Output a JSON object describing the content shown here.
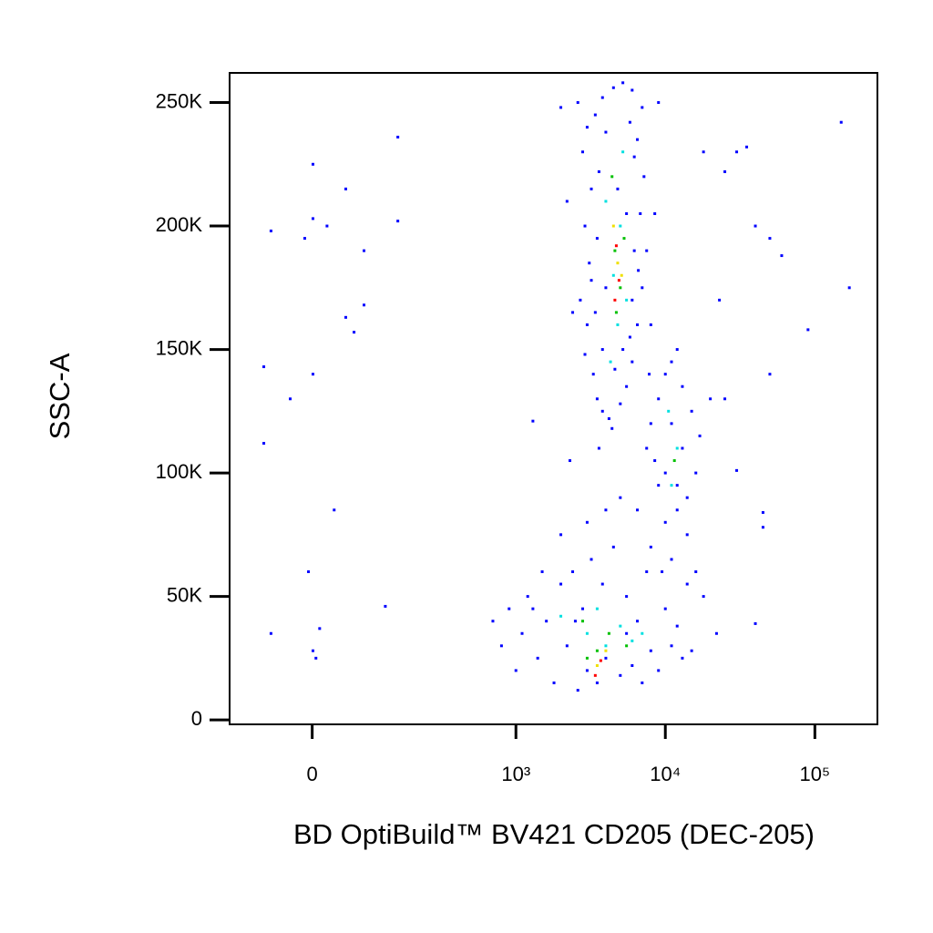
{
  "chart_data": {
    "type": "scatter",
    "x_label": "BD OptiBuild™ BV421 CD205 (DEC-205)",
    "y_label": "SSC-A",
    "xscale": "biexponential",
    "xlim": [
      -143,
      262000
    ],
    "ylim": [
      -1800,
      262000
    ],
    "xticks": [
      0,
      {
        "value": 1000,
        "label": "10³"
      },
      {
        "value": 10000,
        "label": "10⁴"
      },
      {
        "value": 100000,
        "label": "10⁵"
      }
    ],
    "yticks": [
      0,
      {
        "value": 50000,
        "label": "50K"
      },
      {
        "value": 100000,
        "label": "100K"
      },
      {
        "value": 150000,
        "label": "150K"
      },
      {
        "value": 200000,
        "label": "200K"
      },
      {
        "value": 250000,
        "label": "250K"
      }
    ],
    "series": [
      {
        "color": "#0000ff",
        "x": [
          2600,
          3000,
          2800,
          3200,
          2900,
          3100,
          2700,
          3000,
          2900,
          3300,
          3500,
          3800,
          4200,
          5000,
          5500,
          6000,
          6500,
          7000,
          7500,
          6800,
          7200,
          6500,
          7000,
          6000,
          5200,
          4500,
          3800,
          3400,
          4000,
          5800,
          6200,
          3600,
          4800,
          5500,
          3500,
          6200,
          4000,
          6000,
          3400,
          5800,
          3800,
          4600,
          5200,
          3200,
          6600,
          2400,
          2200,
          8000,
          8500,
          9000,
          2000,
          7800,
          4400,
          2300,
          3600,
          8000,
          9000,
          10000,
          11000,
          12000,
          13000,
          15000,
          17000,
          16000,
          14000,
          12000,
          10000,
          9000,
          8500,
          7500,
          11000,
          13000,
          10000,
          12000,
          14000,
          11000,
          16000,
          18000,
          8000,
          9500,
          6500,
          20000,
          700,
          800,
          900,
          1000,
          1100,
          1200,
          1400,
          1600,
          1800,
          2000,
          2200,
          2400,
          2600,
          2800,
          3000,
          3200,
          3500,
          3800,
          4000,
          4500,
          5000,
          5500,
          6000,
          6500,
          7000,
          7500,
          8000,
          9000,
          10000,
          11000,
          12000,
          13000,
          15000,
          14000,
          2000,
          3000,
          4000,
          5000,
          1500,
          2500,
          5500,
          1300,
          -71,
          -71,
          -59,
          -59,
          -30,
          -10,
          1,
          1,
          1,
          1,
          5,
          -5,
          10,
          20,
          30,
          47,
          47,
          77,
          77,
          60,
          151,
          151,
          120,
          1300,
          25000,
          30000,
          35000,
          40000,
          50000,
          60000,
          90000,
          150000,
          170000,
          45000,
          45000,
          40000,
          22000,
          30000,
          25000,
          50000,
          18000,
          23000
        ],
        "values": [
          250000,
          240000,
          230000,
          215000,
          200000,
          185000,
          170000,
          160000,
          148000,
          140000,
          130000,
          125000,
          122000,
          128000,
          135000,
          145000,
          160000,
          175000,
          190000,
          205000,
          220000,
          235000,
          248000,
          255000,
          258000,
          256000,
          252000,
          245000,
          238000,
          242000,
          228000,
          222000,
          215000,
          205000,
          195000,
          190000,
          175000,
          170000,
          165000,
          155000,
          150000,
          142000,
          150000,
          178000,
          182000,
          165000,
          210000,
          160000,
          205000,
          250000,
          248000,
          140000,
          118000,
          105000,
          110000,
          120000,
          130000,
          140000,
          145000,
          150000,
          135000,
          125000,
          115000,
          100000,
          90000,
          85000,
          80000,
          95000,
          105000,
          110000,
          120000,
          110000,
          100000,
          95000,
          75000,
          65000,
          60000,
          50000,
          70000,
          60000,
          85000,
          130000,
          40000,
          30000,
          45000,
          20000,
          35000,
          50000,
          25000,
          40000,
          15000,
          55000,
          30000,
          60000,
          12000,
          45000,
          20000,
          65000,
          15000,
          55000,
          25000,
          70000,
          18000,
          50000,
          22000,
          40000,
          15000,
          60000,
          28000,
          20000,
          45000,
          30000,
          38000,
          25000,
          28000,
          55000,
          75000,
          80000,
          85000,
          90000,
          60000,
          40000,
          35000,
          45000,
          112000,
          143000,
          35000,
          198000,
          130000,
          195000,
          225000,
          203000,
          140000,
          28000,
          25000,
          60000,
          37000,
          200000,
          85000,
          163000,
          215000,
          190000,
          168000,
          157000,
          236000,
          202000,
          46000,
          121000,
          222000,
          230000,
          232000,
          200000,
          195000,
          188000,
          158000,
          242000,
          175000,
          84000,
          78000,
          39000,
          35000,
          101000,
          130000,
          140000,
          230000,
          170000
        ]
      },
      {
        "color": "#00e0e0",
        "x": [
          4500,
          5000,
          4000,
          5500,
          4800,
          5200,
          4300,
          12000,
          11000,
          10500,
          3000,
          4000,
          5000,
          6000,
          3500,
          2000,
          7000
        ],
        "values": [
          180000,
          200000,
          210000,
          170000,
          160000,
          230000,
          145000,
          110000,
          95000,
          125000,
          35000,
          30000,
          38000,
          32000,
          45000,
          42000,
          35000
        ]
      },
      {
        "color": "#00c000",
        "x": [
          4600,
          5000,
          4400,
          5300,
          4700,
          3500,
          4200,
          3000,
          5500,
          2800,
          11500
        ],
        "values": [
          190000,
          175000,
          220000,
          195000,
          165000,
          28000,
          35000,
          25000,
          30000,
          40000,
          105000
        ]
      },
      {
        "color": "#f0e000",
        "x": [
          4800,
          4500,
          5100,
          3500,
          4000
        ],
        "values": [
          185000,
          200000,
          180000,
          22000,
          28000
        ]
      },
      {
        "color": "#ff0000",
        "x": [
          4700,
          4900,
          4600,
          3400,
          3700
        ],
        "values": [
          192000,
          178000,
          170000,
          18000,
          24000
        ]
      }
    ]
  }
}
